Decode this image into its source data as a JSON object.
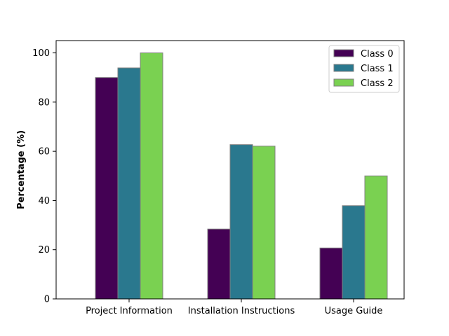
{
  "chart_data": {
    "type": "bar",
    "title": "",
    "xlabel": "",
    "ylabel": "Percentage (%)",
    "categories": [
      "Project Information",
      "Installation Instructions",
      "Usage Guide"
    ],
    "series": [
      {
        "name": "Class 0",
        "values": [
          90.0,
          28.4,
          20.7
        ],
        "color": "#440154"
      },
      {
        "name": "Class 1",
        "values": [
          93.9,
          62.7,
          37.9
        ],
        "color": "#2a788e"
      },
      {
        "name": "Class 2",
        "values": [
          100.0,
          62.1,
          50.0
        ],
        "color": "#7ad151"
      }
    ],
    "ylim": [
      0,
      105
    ],
    "yticks": [
      0,
      20,
      40,
      60,
      80,
      100
    ],
    "legend_position": "top-right",
    "grid": false,
    "bar_edge_color": "#808080"
  }
}
